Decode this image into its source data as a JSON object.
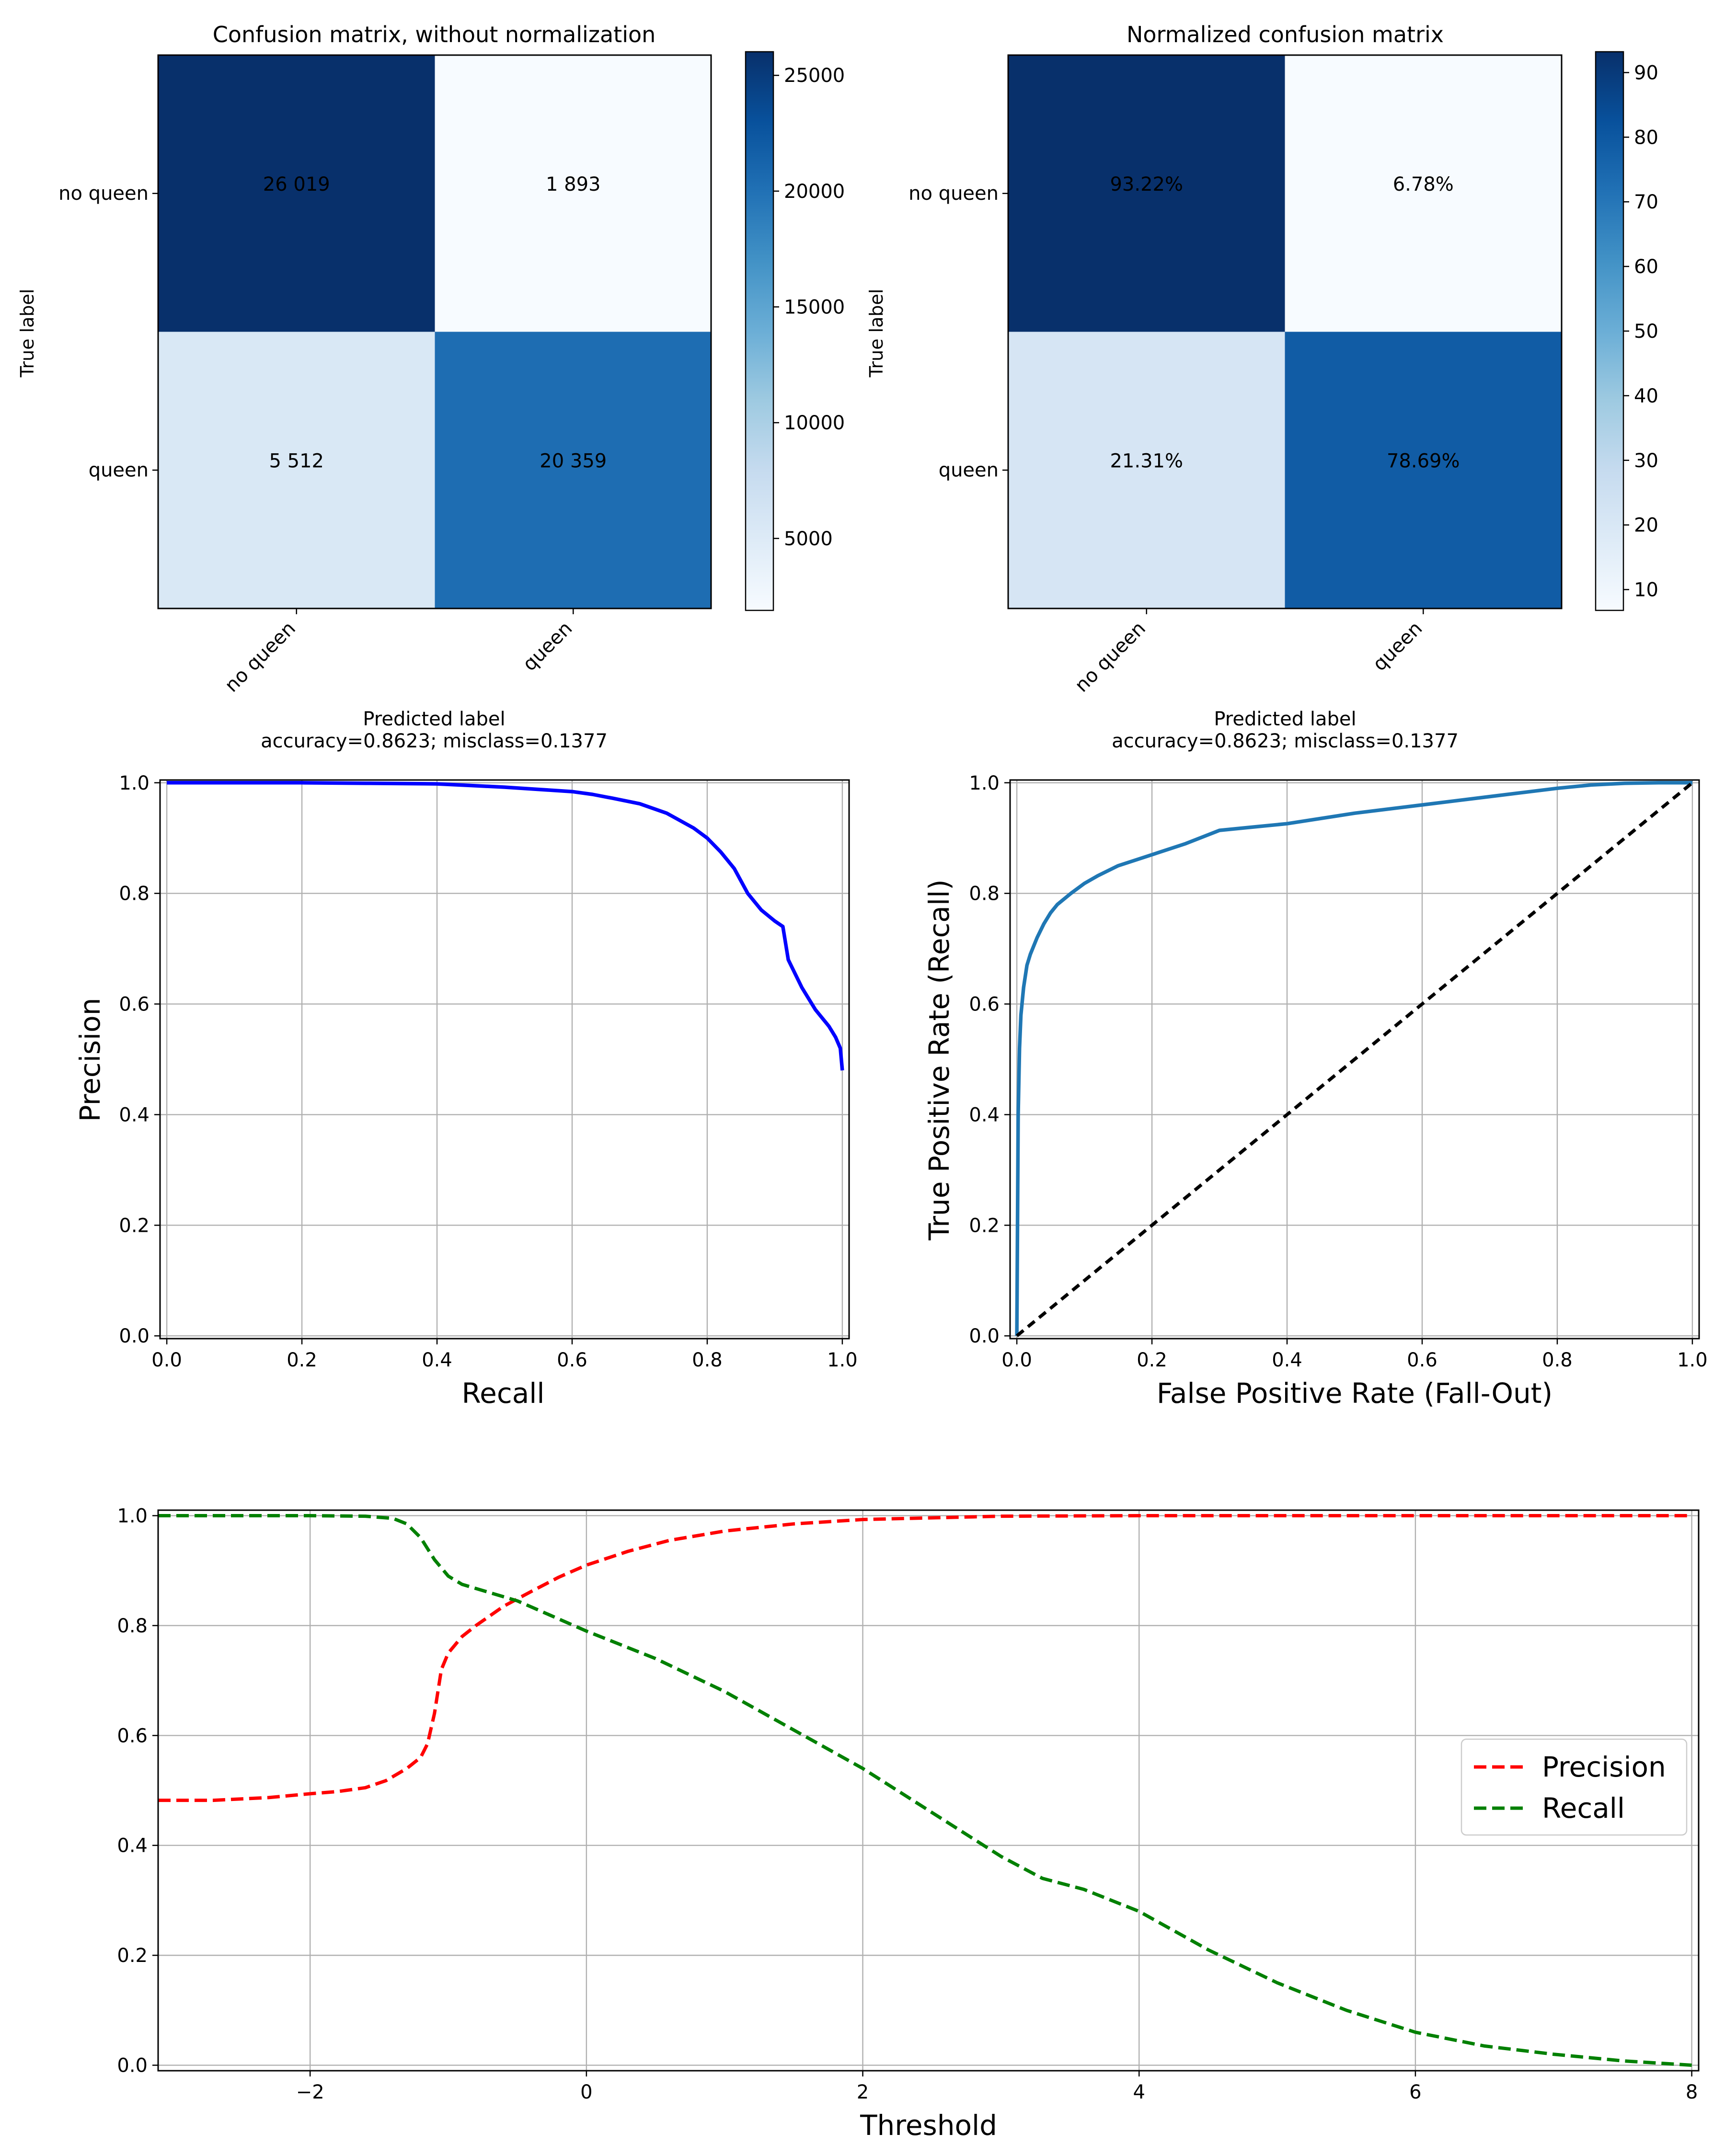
{
  "chart_data": [
    {
      "type": "heatmap",
      "id": "cm_raw",
      "title": "Confusion matrix, without normalization",
      "ylabel": "True label",
      "xlabel": "Predicted label",
      "xlabel_sub": "accuracy=0.8623; misclass=0.1377",
      "row_labels": [
        "no queen",
        "queen"
      ],
      "col_labels": [
        "no queen",
        "queen"
      ],
      "values": [
        [
          26019,
          1893
        ],
        [
          5512,
          20359
        ]
      ],
      "cell_labels": [
        [
          "26 019",
          "1 893"
        ],
        [
          "5 512",
          "20 359"
        ]
      ],
      "colorbar": {
        "min": 1893,
        "max": 26019,
        "ticks": [
          5000,
          10000,
          15000,
          20000,
          25000
        ]
      },
      "colormap": "Blues"
    },
    {
      "type": "heatmap",
      "id": "cm_norm",
      "title": "Normalized confusion matrix",
      "ylabel": "True label",
      "xlabel": "Predicted label",
      "xlabel_sub": "accuracy=0.8623; misclass=0.1377",
      "row_labels": [
        "no queen",
        "queen"
      ],
      "col_labels": [
        "no queen",
        "queen"
      ],
      "values": [
        [
          93.22,
          6.78
        ],
        [
          21.31,
          78.69
        ]
      ],
      "cell_labels": [
        [
          "93.22%",
          "6.78%"
        ],
        [
          "21.31%",
          "78.69%"
        ]
      ],
      "colorbar": {
        "min": 6.78,
        "max": 93.22,
        "ticks": [
          10,
          20,
          30,
          40,
          50,
          60,
          70,
          80,
          90
        ]
      },
      "colormap": "Blues"
    },
    {
      "type": "line",
      "id": "pr",
      "xlabel": "Recall",
      "ylabel": "Precision",
      "xlim": [
        -0.01,
        1.01
      ],
      "ylim": [
        -0.005,
        1.005
      ],
      "xticks": [
        0.0,
        0.2,
        0.4,
        0.6,
        0.8,
        1.0
      ],
      "yticks": [
        0.0,
        0.2,
        0.4,
        0.6,
        0.8,
        1.0
      ],
      "grid": true,
      "series": [
        {
          "color": "#0000ff",
          "dash": "solid",
          "x": [
            0.0,
            0.1,
            0.2,
            0.3,
            0.4,
            0.45,
            0.5,
            0.55,
            0.6,
            0.63,
            0.66,
            0.7,
            0.74,
            0.78,
            0.8,
            0.82,
            0.84,
            0.86,
            0.88,
            0.9,
            0.912,
            0.92,
            0.94,
            0.96,
            0.98,
            0.99,
            0.997,
            1.0
          ],
          "y": [
            1.0,
            1.0,
            1.0,
            0.999,
            0.998,
            0.995,
            0.992,
            0.988,
            0.984,
            0.979,
            0.972,
            0.962,
            0.945,
            0.918,
            0.9,
            0.875,
            0.845,
            0.8,
            0.77,
            0.75,
            0.74,
            0.68,
            0.63,
            0.59,
            0.56,
            0.54,
            0.52,
            0.48
          ]
        }
      ]
    },
    {
      "type": "line",
      "id": "roc",
      "xlabel": "False Positive Rate (Fall-Out)",
      "ylabel": "True Positive Rate (Recall)",
      "xlim": [
        -0.01,
        1.01
      ],
      "ylim": [
        -0.005,
        1.005
      ],
      "xticks": [
        0.0,
        0.2,
        0.4,
        0.6,
        0.8,
        1.0
      ],
      "yticks": [
        0.0,
        0.2,
        0.4,
        0.6,
        0.8,
        1.0
      ],
      "grid": true,
      "series": [
        {
          "color": "#1f77b4",
          "dash": "solid",
          "x": [
            0.0,
            0.002,
            0.004,
            0.006,
            0.01,
            0.015,
            0.02,
            0.03,
            0.04,
            0.05,
            0.06,
            0.08,
            0.1,
            0.12,
            0.15,
            0.2,
            0.25,
            0.3,
            0.35,
            0.4,
            0.5,
            0.6,
            0.7,
            0.8,
            0.85,
            0.9,
            0.95,
            1.0
          ],
          "y": [
            0.0,
            0.4,
            0.52,
            0.58,
            0.63,
            0.67,
            0.69,
            0.72,
            0.745,
            0.765,
            0.78,
            0.8,
            0.818,
            0.832,
            0.85,
            0.87,
            0.89,
            0.914,
            0.92,
            0.926,
            0.945,
            0.96,
            0.975,
            0.99,
            0.996,
            0.999,
            1.0,
            1.0
          ]
        },
        {
          "color": "#000000",
          "dash": "dashed",
          "x": [
            0.0,
            1.0
          ],
          "y": [
            0.0,
            1.0
          ]
        }
      ]
    },
    {
      "type": "line",
      "id": "thr",
      "xlabel": "Threshold",
      "ylabel": "",
      "xlim": [
        -3.1,
        8.05
      ],
      "ylim": [
        -0.01,
        1.01
      ],
      "xticks": [
        -2,
        0,
        2,
        4,
        6,
        8
      ],
      "yticks": [
        0.0,
        0.2,
        0.4,
        0.6,
        0.8,
        1.0
      ],
      "grid": true,
      "legend": "center-right",
      "series": [
        {
          "name": "Precision",
          "color": "#ff0000",
          "dash": "dashed",
          "x": [
            -3.1,
            -2.7,
            -2.3,
            -2.0,
            -1.8,
            -1.6,
            -1.45,
            -1.3,
            -1.2,
            -1.15,
            -1.1,
            -1.05,
            -1.0,
            -0.95,
            -0.9,
            -0.8,
            -0.6,
            -0.4,
            -0.2,
            0.0,
            0.3,
            0.6,
            1.0,
            1.5,
            2.0,
            3.0,
            4.0,
            6.0,
            8.0
          ],
          "y": [
            0.482,
            0.482,
            0.487,
            0.494,
            0.498,
            0.505,
            0.518,
            0.54,
            0.56,
            0.585,
            0.64,
            0.72,
            0.75,
            0.765,
            0.78,
            0.8,
            0.835,
            0.862,
            0.888,
            0.91,
            0.935,
            0.955,
            0.972,
            0.985,
            0.993,
            0.999,
            1.0,
            1.0,
            1.0
          ]
        },
        {
          "name": "Recall",
          "color": "#008000",
          "dash": "dashed",
          "x": [
            -3.1,
            -2.0,
            -1.6,
            -1.4,
            -1.3,
            -1.2,
            -1.1,
            -1.0,
            -0.9,
            -0.7,
            -0.5,
            0.0,
            0.5,
            1.0,
            1.5,
            2.0,
            2.5,
            3.0,
            3.3,
            3.6,
            4.0,
            4.5,
            5.0,
            5.5,
            6.0,
            6.5,
            7.0,
            7.5,
            8.0
          ],
          "y": [
            1.0,
            1.0,
            0.999,
            0.995,
            0.985,
            0.96,
            0.92,
            0.89,
            0.875,
            0.86,
            0.845,
            0.79,
            0.74,
            0.68,
            0.61,
            0.54,
            0.46,
            0.38,
            0.34,
            0.32,
            0.28,
            0.21,
            0.15,
            0.1,
            0.06,
            0.035,
            0.02,
            0.008,
            0.0
          ]
        }
      ]
    }
  ]
}
